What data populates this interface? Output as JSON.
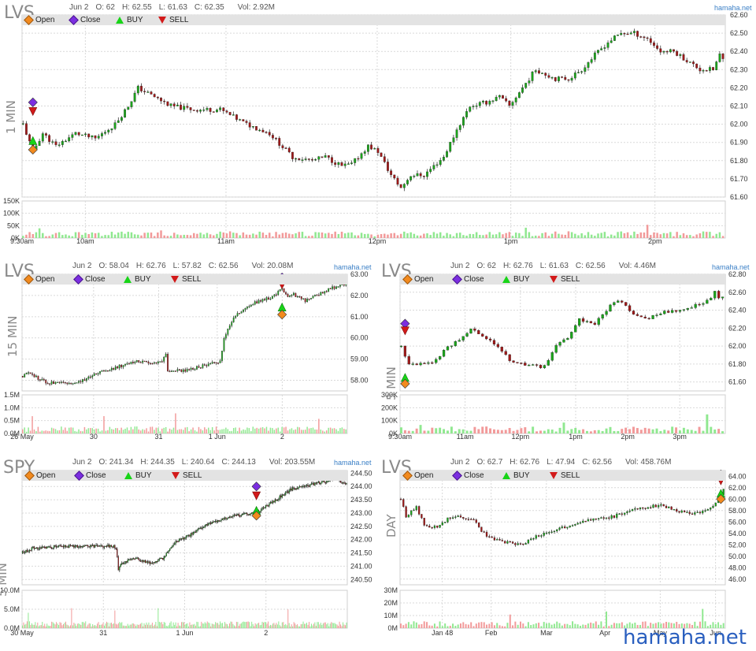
{
  "legend": {
    "open": "Open",
    "close": "Close",
    "buy": "BUY",
    "sell": "SELL"
  },
  "brand": "hamaha.net",
  "watermark": "hamaha.net",
  "colors": {
    "up": "#1aa51a",
    "down": "#a01818",
    "upVol": "#90e890",
    "downVol": "#f29a9a",
    "grid": "#d9d9d9",
    "open": "#f28a1e",
    "close": "#7b2ee0",
    "buy": "#18d418",
    "sell": "#d21a1a"
  },
  "chart_data": [
    {
      "id": "p1",
      "type": "candlestick",
      "symbol": "LVS",
      "timeframe": "1 MIN",
      "header": {
        "date": "Jun 2",
        "o": "O: 62",
        "h": "H: 62.55",
        "l": "L: 61.63",
        "c": "C: 62.35",
        "vol": "Vol: 2.92M"
      },
      "xticks": [
        "9:30am",
        "10am",
        "11am",
        "12pm",
        "1pm",
        "2pm"
      ],
      "yticks": [
        "62.60",
        "62.50",
        "62.40",
        "62.30",
        "62.20",
        "62.10",
        "62.00",
        "61.90",
        "61.80",
        "61.70",
        "61.60"
      ],
      "ylim": [
        61.6,
        62.6
      ],
      "volticks": [
        "150K",
        "100K",
        "50K",
        "0K"
      ],
      "vmax": 150,
      "path": [
        [
          0,
          62.0
        ],
        [
          3,
          61.85
        ],
        [
          6,
          61.95
        ],
        [
          10,
          61.88
        ],
        [
          16,
          61.95
        ],
        [
          22,
          61.92
        ],
        [
          28,
          62.0
        ],
        [
          32,
          62.1
        ],
        [
          35,
          62.2
        ],
        [
          40,
          62.15
        ],
        [
          45,
          62.1
        ],
        [
          52,
          62.08
        ],
        [
          60,
          62.08
        ],
        [
          68,
          62.0
        ],
        [
          75,
          61.95
        ],
        [
          82,
          61.82
        ],
        [
          88,
          61.8
        ],
        [
          92,
          61.82
        ],
        [
          97,
          61.77
        ],
        [
          100,
          61.78
        ],
        [
          105,
          61.88
        ],
        [
          108,
          61.85
        ],
        [
          112,
          61.72
        ],
        [
          115,
          61.65
        ],
        [
          118,
          61.72
        ],
        [
          122,
          61.72
        ],
        [
          128,
          61.82
        ],
        [
          132,
          61.97
        ],
        [
          136,
          62.1
        ],
        [
          141,
          62.12
        ],
        [
          145,
          62.15
        ],
        [
          148,
          62.1
        ],
        [
          152,
          62.2
        ],
        [
          156,
          62.3
        ],
        [
          162,
          62.25
        ],
        [
          166,
          62.25
        ],
        [
          170,
          62.3
        ],
        [
          174,
          62.38
        ],
        [
          178,
          62.45
        ],
        [
          182,
          62.5
        ],
        [
          186,
          62.5
        ],
        [
          190,
          62.47
        ],
        [
          194,
          62.4
        ],
        [
          198,
          62.4
        ],
        [
          202,
          62.35
        ],
        [
          206,
          62.3
        ],
        [
          210,
          62.3
        ],
        [
          212,
          62.38
        ],
        [
          214,
          62.33
        ]
      ],
      "span": 214,
      "nbars": 214,
      "seed": 11,
      "markers": [
        {
          "t": 3,
          "price": 62.12,
          "kind": "close"
        },
        {
          "t": 3,
          "price": 62.07,
          "kind": "sell"
        },
        {
          "t": 3,
          "price": 61.91,
          "kind": "buy"
        },
        {
          "t": 3,
          "price": 61.86,
          "kind": "open"
        }
      ]
    },
    {
      "id": "p2",
      "type": "candlestick",
      "symbol": "LVS",
      "timeframe": "15 MIN",
      "header": {
        "date": "Jun 2",
        "o": "O: 58.04",
        "h": "H: 62.76",
        "l": "L: 57.82",
        "c": "C: 62.56",
        "vol": "Vol: 20.08M"
      },
      "xticks": [
        "26 May",
        "30",
        "31",
        "1 Jun",
        "2"
      ],
      "yticks": [
        "63.00",
        "62.00",
        "61.00",
        "60.00",
        "59.00",
        "58.00"
      ],
      "ylim": [
        57.5,
        63.0
      ],
      "volticks": [
        "1.5M",
        "1.0M",
        "0.5M",
        "0.0M"
      ],
      "vmax": 1.5,
      "path": [
        [
          0,
          58.2
        ],
        [
          3,
          58.4
        ],
        [
          8,
          58.1
        ],
        [
          12,
          57.9
        ],
        [
          20,
          57.85
        ],
        [
          28,
          57.9
        ],
        [
          34,
          58.1
        ],
        [
          38,
          58.35
        ],
        [
          48,
          58.6
        ],
        [
          58,
          58.9
        ],
        [
          68,
          58.85
        ],
        [
          72,
          58.9
        ],
        [
          74,
          59.3
        ],
        [
          75,
          58.4
        ],
        [
          86,
          58.5
        ],
        [
          96,
          58.75
        ],
        [
          102,
          58.9
        ],
        [
          104,
          60.0
        ],
        [
          108,
          60.8
        ],
        [
          112,
          61.2
        ],
        [
          118,
          61.6
        ],
        [
          128,
          61.9
        ],
        [
          134,
          62.3
        ],
        [
          137,
          61.9
        ],
        [
          140,
          62.05
        ],
        [
          146,
          61.75
        ],
        [
          152,
          62.0
        ],
        [
          158,
          62.3
        ],
        [
          164,
          62.45
        ],
        [
          168,
          62.6
        ]
      ],
      "span": 168,
      "nbars": 168,
      "seed": 22,
      "markers": [
        {
          "t": 134,
          "price": 62.85,
          "kind": "close"
        },
        {
          "t": 134,
          "price": 62.5,
          "kind": "sell"
        },
        {
          "t": 134,
          "price": 61.45,
          "kind": "buy"
        },
        {
          "t": 134,
          "price": 61.1,
          "kind": "open"
        }
      ]
    },
    {
      "id": "p3",
      "type": "candlestick",
      "symbol": "LVS",
      "timeframe": "5 MIN",
      "header": {
        "date": "Jun 2",
        "o": "O: 62",
        "h": "H: 62.76",
        "l": "L: 61.63",
        "c": "C: 62.56",
        "vol": "Vol: 4.46M"
      },
      "xticks": [
        "9:30am",
        "11am",
        "12pm",
        "1pm",
        "2pm",
        "3pm"
      ],
      "yticks": [
        "62.80",
        "62.60",
        "62.40",
        "62.20",
        "62.00",
        "61.80",
        "61.60"
      ],
      "ylim": [
        61.5,
        62.8
      ],
      "volticks": [
        "300K",
        "200K",
        "100K",
        "0K"
      ],
      "vmax": 300,
      "path": [
        [
          0,
          62.0
        ],
        [
          2,
          61.8
        ],
        [
          5,
          61.8
        ],
        [
          8,
          61.8
        ],
        [
          11,
          61.95
        ],
        [
          14,
          62.05
        ],
        [
          16,
          62.1
        ],
        [
          18,
          62.2
        ],
        [
          21,
          62.1
        ],
        [
          25,
          62.0
        ],
        [
          28,
          61.85
        ],
        [
          31,
          61.8
        ],
        [
          34,
          61.8
        ],
        [
          36,
          61.75
        ],
        [
          38,
          61.85
        ],
        [
          40,
          62.0
        ],
        [
          43,
          62.1
        ],
        [
          46,
          62.3
        ],
        [
          50,
          62.25
        ],
        [
          53,
          62.4
        ],
        [
          55,
          62.5
        ],
        [
          57,
          62.5
        ],
        [
          60,
          62.35
        ],
        [
          63,
          62.3
        ],
        [
          66,
          62.35
        ],
        [
          70,
          62.4
        ],
        [
          73,
          62.4
        ],
        [
          76,
          62.45
        ],
        [
          79,
          62.5
        ],
        [
          81,
          62.6
        ],
        [
          82,
          62.55
        ],
        [
          84,
          62.57
        ]
      ],
      "span": 84,
      "nbars": 84,
      "seed": 33,
      "markers": [
        {
          "t": 1,
          "price": 62.25,
          "kind": "close"
        },
        {
          "t": 1,
          "price": 62.17,
          "kind": "sell"
        },
        {
          "t": 1,
          "price": 61.65,
          "kind": "buy"
        },
        {
          "t": 1,
          "price": 61.58,
          "kind": "open"
        }
      ]
    },
    {
      "id": "p4",
      "type": "candlestick",
      "symbol": "SPY",
      "timeframe": "5 MIN",
      "header": {
        "date": "Jun 2",
        "o": "O: 241.34",
        "h": "H: 244.35",
        "l": "L: 240.64",
        "c": "C: 244.13",
        "vol": "Vol: 203.55M"
      },
      "xticks": [
        "30 May",
        "31",
        "1 Jun",
        "2"
      ],
      "yticks": [
        "244.50",
        "244.00",
        "243.50",
        "243.00",
        "242.50",
        "242.00",
        "241.50",
        "241.00",
        "240.50"
      ],
      "ylim": [
        240.3,
        244.6
      ],
      "volticks": [
        "10.0M",
        "5.0M",
        "0.0M"
      ],
      "vmax": 10,
      "path": [
        [
          0,
          241.5
        ],
        [
          10,
          241.7
        ],
        [
          40,
          241.75
        ],
        [
          78,
          241.75
        ],
        [
          80,
          241.7
        ],
        [
          82,
          240.9
        ],
        [
          85,
          241.1
        ],
        [
          95,
          241.3
        ],
        [
          110,
          241.1
        ],
        [
          120,
          241.3
        ],
        [
          130,
          241.9
        ],
        [
          140,
          242.1
        ],
        [
          160,
          242.6
        ],
        [
          180,
          242.9
        ],
        [
          200,
          243.0
        ],
        [
          230,
          243.9
        ],
        [
          260,
          244.2
        ],
        [
          268,
          244.3
        ],
        [
          275,
          244.1
        ],
        [
          278,
          244.15
        ]
      ],
      "span": 278,
      "nbars": 278,
      "seed": 44,
      "markers": [
        {
          "t": 200,
          "price": 244.0,
          "kind": "close"
        },
        {
          "t": 200,
          "price": 243.65,
          "kind": "sell"
        },
        {
          "t": 200,
          "price": 243.1,
          "kind": "buy"
        },
        {
          "t": 200,
          "price": 242.9,
          "kind": "open"
        }
      ]
    },
    {
      "id": "p5",
      "type": "candlestick",
      "symbol": "LVS",
      "timeframe": "DAY",
      "header": {
        "date": "Jun 2",
        "o": "O: 62.7",
        "h": "H: 62.76",
        "l": "L: 47.94",
        "c": "C: 62.56",
        "vol": "Vol: 458.76M"
      },
      "xticks": [
        "Jan 48",
        "Feb",
        "Mar",
        "Apr",
        "May",
        "Jun"
      ],
      "yticks": [
        "64.00",
        "62.00",
        "60.00",
        "58.00",
        "56.00",
        "54.00",
        "52.00",
        "50.00",
        "48.00",
        "46.00"
      ],
      "ylim": [
        45.0,
        65.0
      ],
      "volticks": [
        "30M",
        "20M",
        "10M",
        "0M"
      ],
      "vmax": 30,
      "path": [
        [
          0,
          60.0
        ],
        [
          2,
          57.0
        ],
        [
          6,
          58.5
        ],
        [
          9,
          55.5
        ],
        [
          14,
          55.0
        ],
        [
          18,
          56.5
        ],
        [
          22,
          57.0
        ],
        [
          28,
          56.5
        ],
        [
          30,
          55.0
        ],
        [
          34,
          53.2
        ],
        [
          40,
          52.5
        ],
        [
          46,
          52.0
        ],
        [
          52,
          53.5
        ],
        [
          58,
          54.5
        ],
        [
          64,
          55.3
        ],
        [
          70,
          56.3
        ],
        [
          76,
          56.5
        ],
        [
          82,
          57.0
        ],
        [
          88,
          58.0
        ],
        [
          94,
          58.5
        ],
        [
          100,
          59.0
        ],
        [
          106,
          58.0
        ],
        [
          112,
          57.5
        ],
        [
          118,
          58.0
        ],
        [
          122,
          60.0
        ],
        [
          125,
          62.5
        ]
      ],
      "span": 125,
      "nbars": 125,
      "seed": 55,
      "markers": [
        {
          "t": 123,
          "price": 64.3,
          "kind": "close"
        },
        {
          "t": 123,
          "price": 63.2,
          "kind": "sell"
        },
        {
          "t": 123,
          "price": 61.0,
          "kind": "buy"
        },
        {
          "t": 123,
          "price": 60.0,
          "kind": "open"
        }
      ]
    }
  ]
}
